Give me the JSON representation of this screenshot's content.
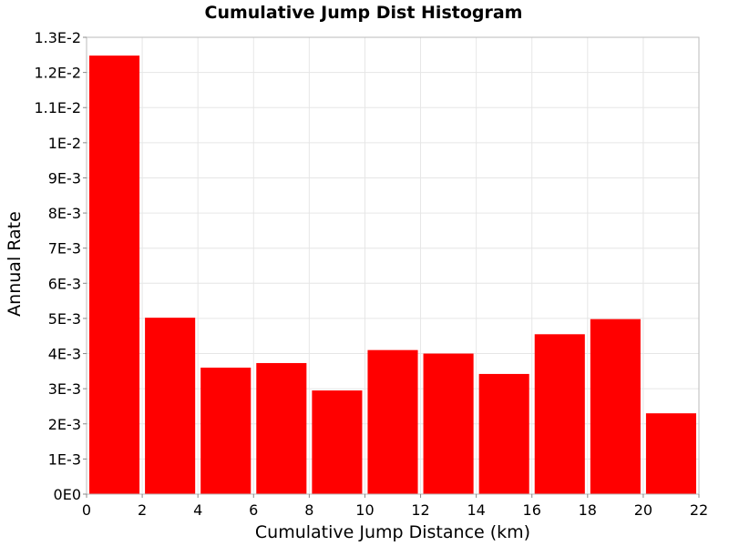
{
  "chart_data": {
    "type": "bar",
    "title": "Cumulative Jump Dist Histogram",
    "xlabel": "Cumulative Jump Distance (km)",
    "ylabel": "Annual Rate",
    "xlim": [
      0,
      22
    ],
    "ylim": [
      0,
      0.013
    ],
    "x_ticks": [
      "0",
      "2",
      "4",
      "6",
      "8",
      "10",
      "12",
      "14",
      "16",
      "18",
      "20",
      "22"
    ],
    "y_ticks": [
      "0E0",
      "1E-3",
      "2E-3",
      "3E-3",
      "4E-3",
      "5E-3",
      "6E-3",
      "7E-3",
      "8E-3",
      "9E-3",
      "1E-2",
      "1.1E-2",
      "1.2E-2",
      "1.3E-2"
    ],
    "grid": true,
    "bar_color": "#ff0000",
    "bins": [
      {
        "x0": 0,
        "x1": 2,
        "value": 0.01248
      },
      {
        "x0": 2,
        "x1": 4,
        "value": 0.00502
      },
      {
        "x0": 4,
        "x1": 6,
        "value": 0.0036
      },
      {
        "x0": 6,
        "x1": 8,
        "value": 0.00373
      },
      {
        "x0": 8,
        "x1": 10,
        "value": 0.00295
      },
      {
        "x0": 10,
        "x1": 12,
        "value": 0.0041
      },
      {
        "x0": 12,
        "x1": 14,
        "value": 0.004
      },
      {
        "x0": 14,
        "x1": 16,
        "value": 0.00342
      },
      {
        "x0": 16,
        "x1": 18,
        "value": 0.00455
      },
      {
        "x0": 18,
        "x1": 20,
        "value": 0.00498
      },
      {
        "x0": 20,
        "x1": 22,
        "value": 0.0023
      }
    ]
  }
}
